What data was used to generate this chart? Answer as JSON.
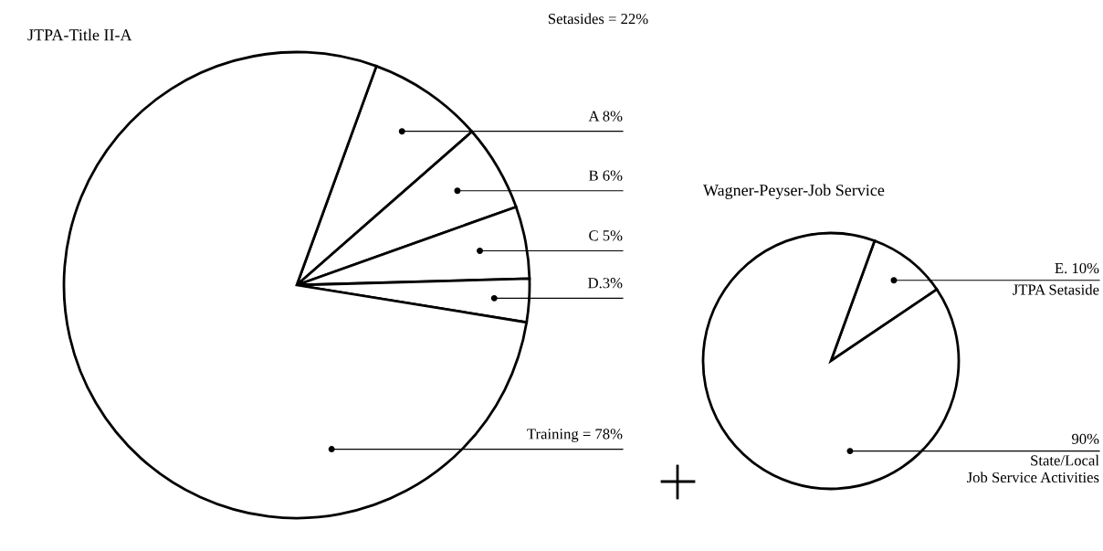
{
  "chart_data": [
    {
      "type": "pie",
      "title": "JTPA-Title II-A",
      "categories": [
        "A 8%",
        "B 6%",
        "C 5%",
        "D.3%",
        "Training = 78%"
      ],
      "values": [
        8,
        6,
        5,
        3,
        78
      ],
      "colors": [
        "#ffffff",
        "#ffffff",
        "#ffffff",
        "#ffffff",
        "#ffffff"
      ],
      "annotations": [
        "Setasides = 22%"
      ]
    },
    {
      "type": "pie",
      "title": "Wagner-Peyser-Job Service",
      "categories": [
        "E. 10%\nJTPA Setaside",
        "90%\nState/Local\nJob Service Activities"
      ],
      "values": [
        10,
        90
      ],
      "colors": [
        "#ffffff",
        "#ffffff"
      ]
    }
  ]
}
